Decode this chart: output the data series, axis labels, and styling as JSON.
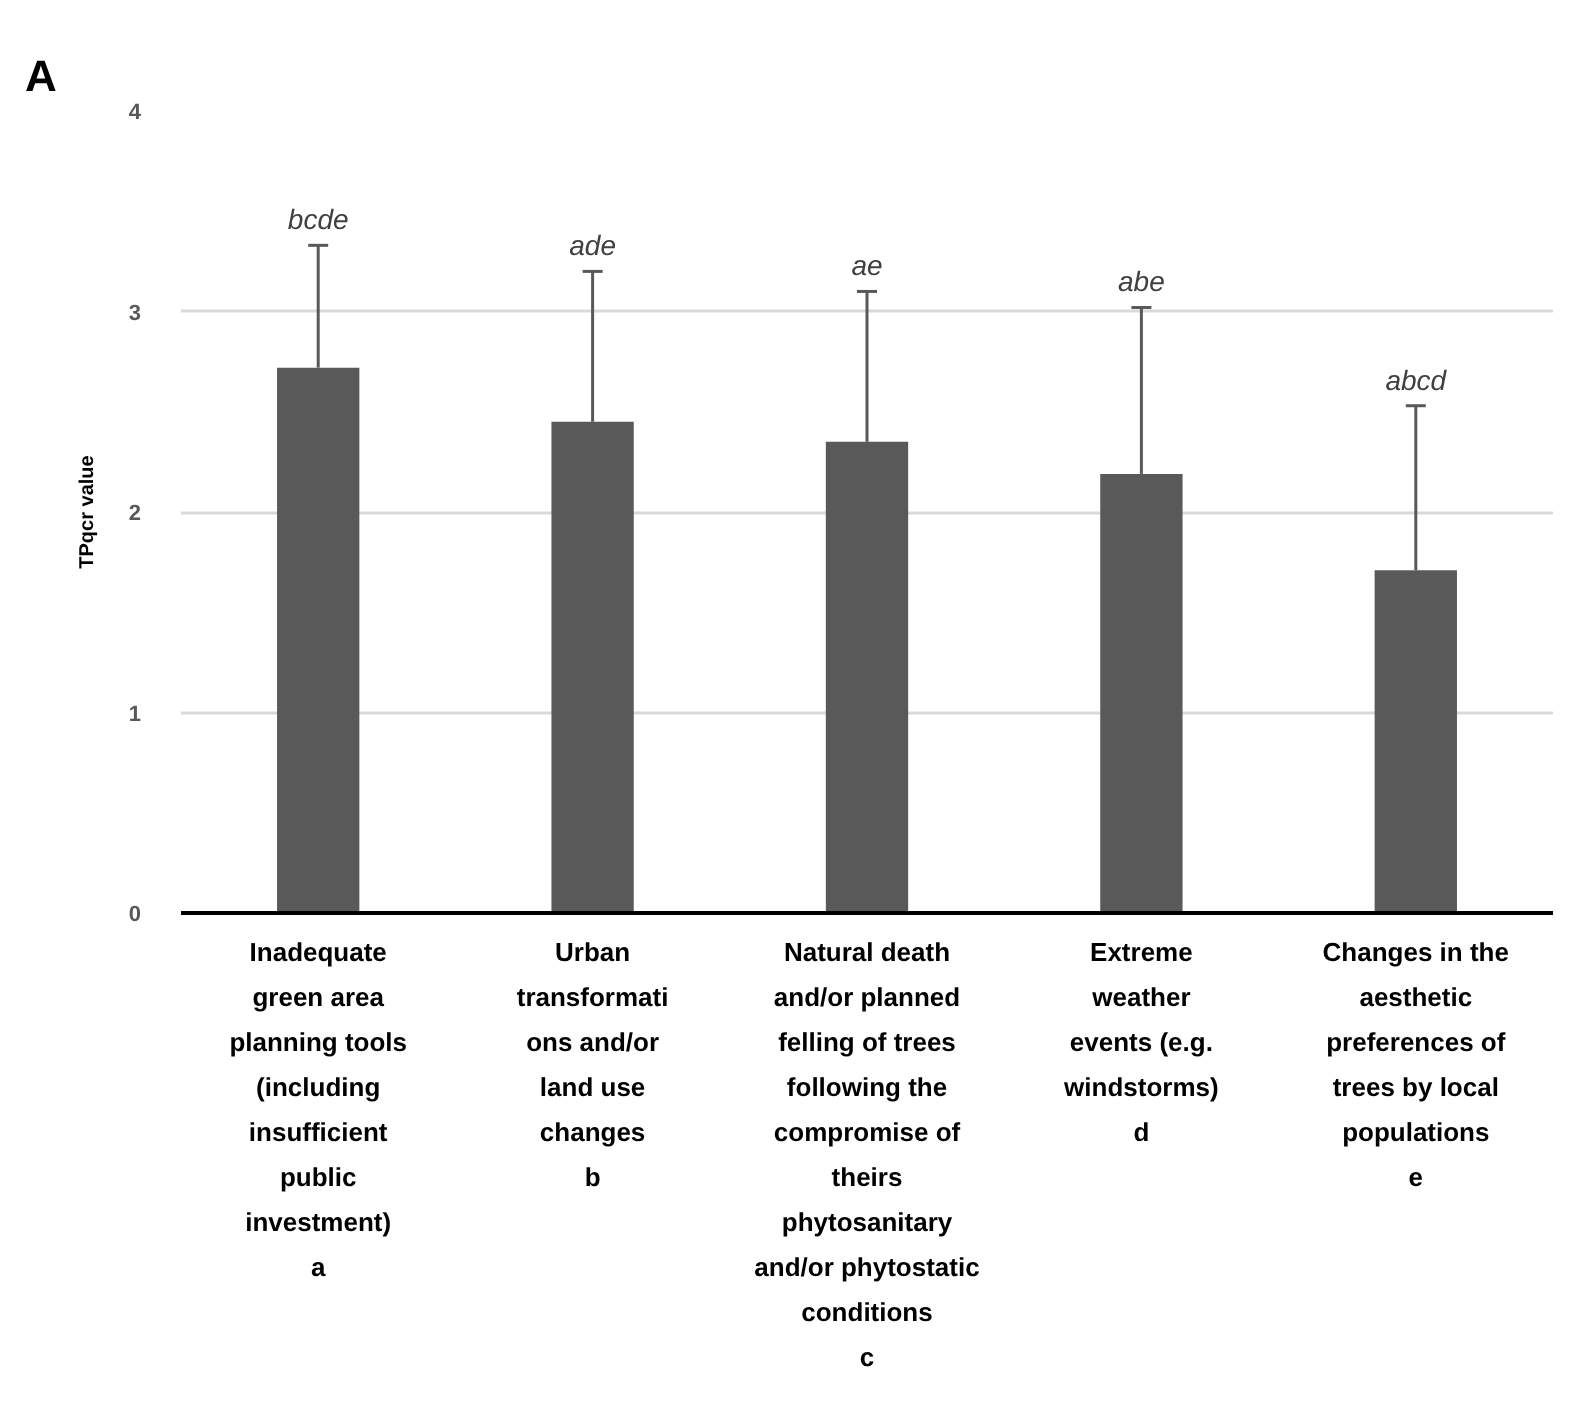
{
  "chart_data": {
    "type": "bar",
    "title": "A",
    "ylabel": "TPqcr value",
    "categories": [
      "Inadequate\ngreen area\nplanning tools\n(including\ninsufficient\npublic\ninvestment)\na",
      "Urban\ntransformati\nons and/or\nland use\nchanges\nb",
      "Natural death\nand/or planned\nfelling of trees\nfollowing the\ncompromise of\ntheirs\nphytosanitary\nand/or phytostatic\nconditions\nc",
      "Extreme\nweather\nevents (e.g.\nwindstorms)\nd",
      "Changes in the\naesthetic\npreferences of\ntrees by local\npopulations\ne"
    ],
    "values": [
      2.72,
      2.45,
      2.35,
      2.19,
      1.71
    ],
    "errors": [
      [
        2.72,
        3.33
      ],
      [
        2.45,
        3.2
      ],
      [
        2.35,
        3.1
      ],
      [
        2.19,
        3.02
      ],
      [
        1.71,
        2.53
      ]
    ],
    "color": "#595959",
    "ylim": [
      0,
      4
    ],
    "yticks": [
      0,
      1,
      2,
      3,
      4
    ],
    "grid": "y",
    "annotations": [
      {
        "text": "bcde",
        "x": "Inadequate\ngreen area\nplanning tools\n(including\ninsufficient\npublic\ninvestment)\na",
        "y": 3.33
      },
      {
        "text": "ade",
        "x": "Urban\ntransformati\nons and/or\nland use\nchanges\nb",
        "y": 3.2
      },
      {
        "text": "ae",
        "x": "Natural death\nand/or planned\nfelling of trees\nfollowing the\ncompromise of\ntheirs\nphytosanitary\nand/or phytostatic\nconditions\nc",
        "y": 3.1
      },
      {
        "text": "abe",
        "x": "Extreme\nweather\nevents (e.g.\nwindstorms)\nd",
        "y": 3.02
      },
      {
        "text": "abcd",
        "x": "Changes in the\naesthetic\npreferences of\ntrees by local\npopulations\ne",
        "y": 2.53
      }
    ]
  }
}
